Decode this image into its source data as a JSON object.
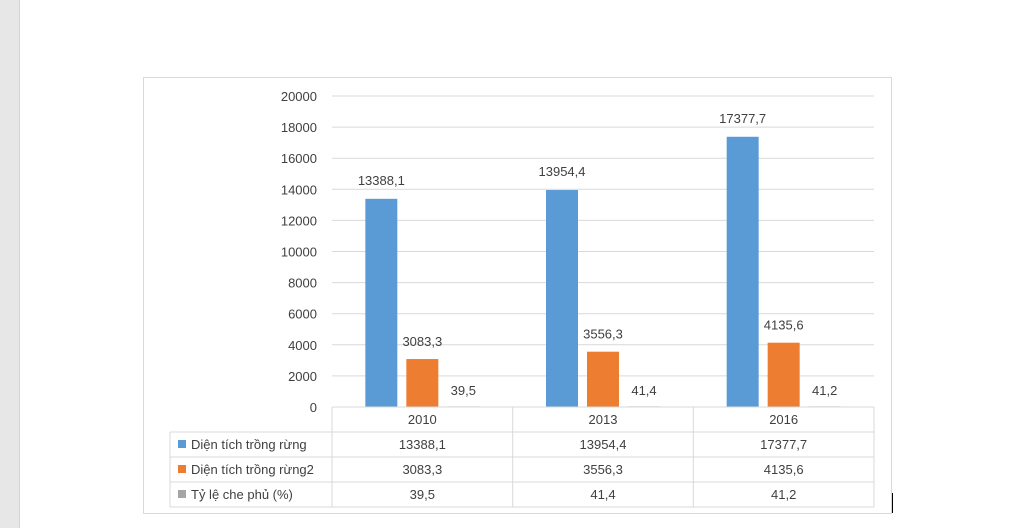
{
  "chart_data": {
    "type": "bar",
    "categories": [
      "2010",
      "2013",
      "2016"
    ],
    "series": [
      {
        "name": "Diện tích trồng rừng",
        "values": [
          13388.1,
          13954.4,
          17377.7
        ],
        "labels": [
          "13388,1",
          "13954,4",
          "17377,7"
        ],
        "color": "#5b9bd5"
      },
      {
        "name": "Diện tích trồng rừng2",
        "values": [
          3083.3,
          3556.3,
          4135.6
        ],
        "labels": [
          "3083,3",
          "3556,3",
          "4135,6"
        ],
        "color": "#ed7d31"
      },
      {
        "name": "Tỷ lệ che phủ (%)",
        "values": [
          39.5,
          41.4,
          41.2
        ],
        "labels": [
          "39,5",
          "41,4",
          "41,2"
        ],
        "color": "#a5a5a5"
      }
    ],
    "ylim": [
      0,
      20000
    ],
    "yticks": [
      "0",
      "2000",
      "4000",
      "6000",
      "8000",
      "10000",
      "12000",
      "14000",
      "16000",
      "18000",
      "20000"
    ],
    "grid": true,
    "legend": "data-table-below"
  }
}
